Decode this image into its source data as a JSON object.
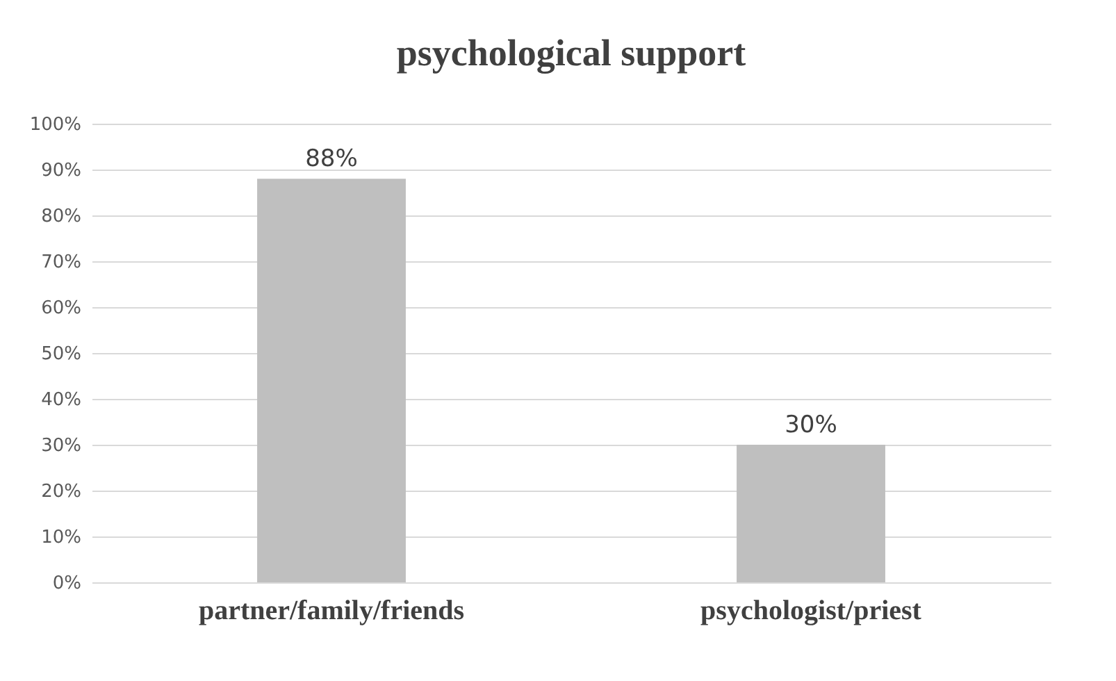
{
  "chart_data": {
    "type": "bar",
    "title": "psychological support",
    "categories": [
      "partner/family/friends",
      "psychologist/priest"
    ],
    "values": [
      88,
      30
    ],
    "color": "#bfbfbf",
    "value_labels": [
      "88%",
      "30%"
    ],
    "ylim": [
      0,
      100
    ],
    "yticks": [
      {
        "value": 0,
        "label": "0%"
      },
      {
        "value": 10,
        "label": "10%"
      },
      {
        "value": 20,
        "label": "20%"
      },
      {
        "value": 30,
        "label": "30%"
      },
      {
        "value": 40,
        "label": "40%"
      },
      {
        "value": 50,
        "label": "50%"
      },
      {
        "value": 60,
        "label": "60%"
      },
      {
        "value": 70,
        "label": "70%"
      },
      {
        "value": 80,
        "label": "80%"
      },
      {
        "value": 90,
        "label": "90%"
      },
      {
        "value": 100,
        "label": "100%"
      }
    ],
    "grid": true
  }
}
